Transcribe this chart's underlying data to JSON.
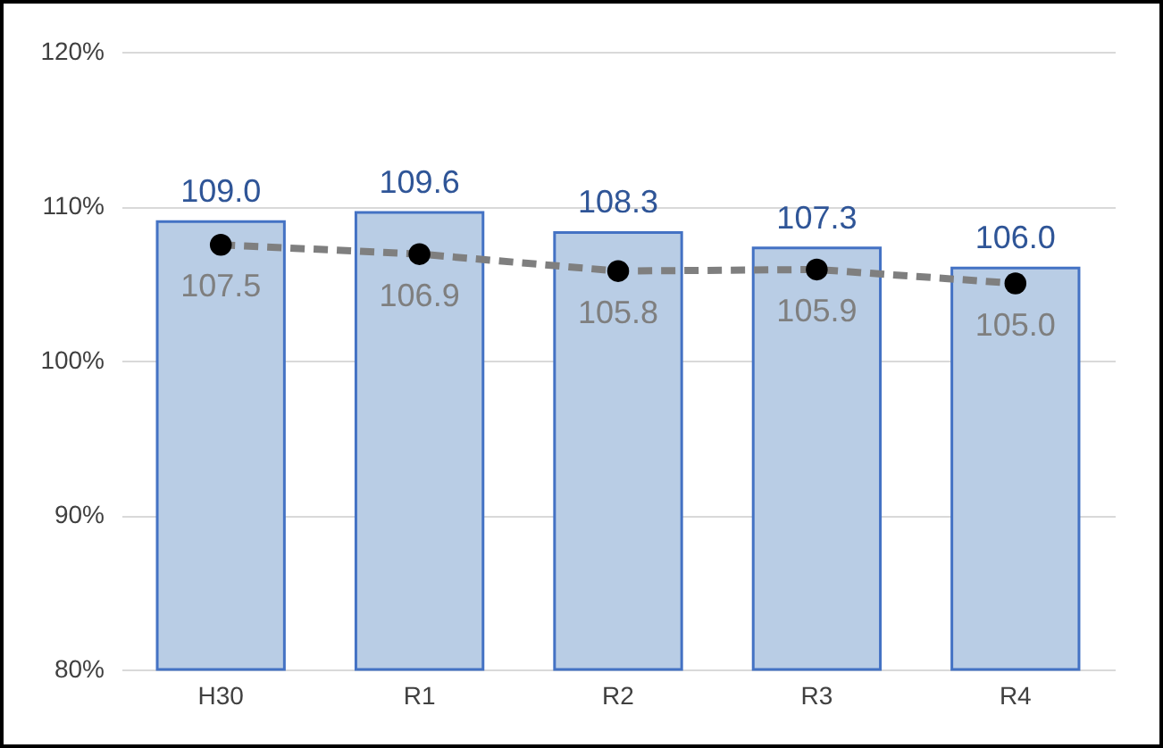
{
  "chart_data": {
    "type": "bar",
    "categories": [
      "H30",
      "R1",
      "R2",
      "R3",
      "R4"
    ],
    "series": [
      {
        "color": "#b9cde5",
        "values": [
          109.0,
          109.6,
          108.3,
          107.3,
          106.0
        ],
        "value_labels": [
          "109.0",
          "109.6",
          "108.3",
          "107.3",
          "106.0"
        ]
      },
      {
        "type": "line",
        "color": "#7f7f7f",
        "marker": "circle",
        "line_style": "dashed",
        "values": [
          107.5,
          106.9,
          105.8,
          105.9,
          105.0
        ],
        "value_labels": [
          "107.5",
          "106.9",
          "105.8",
          "105.9",
          "105.0"
        ]
      }
    ],
    "ylim": [
      80,
      120
    ],
    "yticks": [
      {
        "value": 80,
        "label": "80%"
      },
      {
        "value": 90,
        "label": "90%"
      },
      {
        "value": 100,
        "label": "100%"
      },
      {
        "value": 110,
        "label": "110%"
      },
      {
        "value": 120,
        "label": "120%"
      }
    ],
    "grid": "y"
  }
}
